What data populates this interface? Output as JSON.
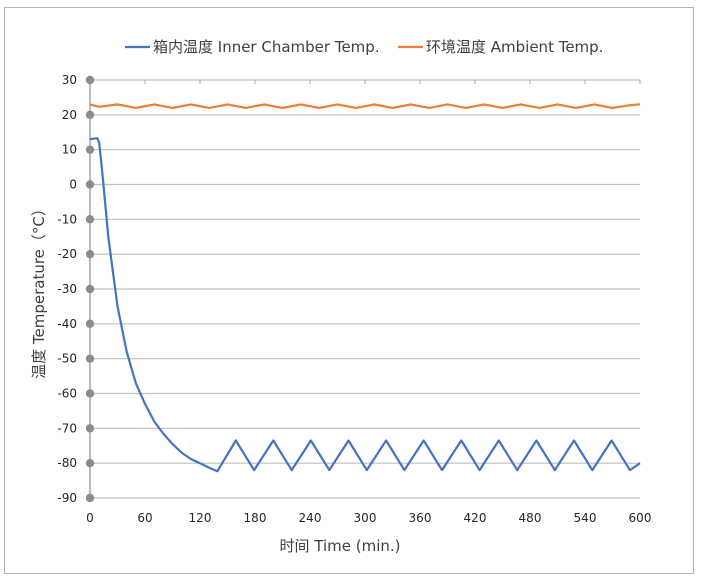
{
  "chart_data": {
    "type": "line",
    "title": "",
    "xlabel": "时间 Time (min.)",
    "ylabel": "温度 Temperature（°C）",
    "xlim": [
      0,
      600
    ],
    "ylim": [
      -90,
      30
    ],
    "x_ticks": [
      0,
      60,
      120,
      180,
      240,
      300,
      360,
      420,
      480,
      540,
      600
    ],
    "y_ticks": [
      30,
      20,
      10,
      0,
      -10,
      -20,
      -30,
      -40,
      -50,
      -60,
      -70,
      -80,
      -90
    ],
    "grid": "horizontal",
    "legend_position": "top",
    "series": [
      {
        "name": "箱内温度 Inner Chamber Temp.",
        "color": "#4472c4",
        "x": [
          0,
          8,
          10,
          14,
          20,
          30,
          40,
          50,
          60,
          70,
          80,
          90,
          100,
          110,
          120,
          130,
          139,
          159,
          179,
          200,
          220,
          241,
          261,
          282,
          302,
          323,
          343,
          364,
          384,
          405,
          425,
          446,
          466,
          487,
          507,
          528,
          548,
          569,
          589,
          600
        ],
        "values": [
          13,
          13.3,
          12,
          2,
          -15,
          -35,
          -48,
          -57,
          -63,
          -68,
          -71.5,
          -74.5,
          -77,
          -78.8,
          -80,
          -81.3,
          -82.3,
          -73.5,
          -82,
          -73.5,
          -82,
          -73.5,
          -82,
          -73.5,
          -82,
          -73.5,
          -82,
          -73.5,
          -82,
          -73.5,
          -82,
          -73.5,
          -82,
          -73.5,
          -82,
          -73.5,
          -82,
          -73.5,
          -82,
          -80
        ]
      },
      {
        "name": "环境温度 Ambient Temp.",
        "color": "#ed7d31",
        "x": [
          0,
          10,
          30,
          50,
          70,
          90,
          110,
          130,
          150,
          170,
          190,
          210,
          230,
          250,
          270,
          290,
          310,
          330,
          350,
          370,
          390,
          410,
          430,
          450,
          470,
          490,
          510,
          530,
          550,
          570,
          590,
          600
        ],
        "values": [
          23,
          22.3,
          23,
          22,
          23,
          22,
          23,
          22,
          23,
          22,
          23,
          22,
          23,
          22,
          23,
          22,
          23,
          22,
          23,
          22,
          23,
          22,
          23,
          22,
          23,
          22,
          23,
          22,
          23,
          22,
          22.8,
          23
        ]
      }
    ]
  },
  "legend": {
    "inner": "箱内温度 Inner Chamber Temp.",
    "ambient": "环境温度 Ambient Temp."
  },
  "axes": {
    "xlabel": "时间 Time (min.)",
    "ylabel": "温度  Temperature（°C）"
  },
  "style": {
    "grid_color": "#bfbfbf",
    "axis_color": "#a6a6a6",
    "marker_color": "#8c8c8c"
  }
}
